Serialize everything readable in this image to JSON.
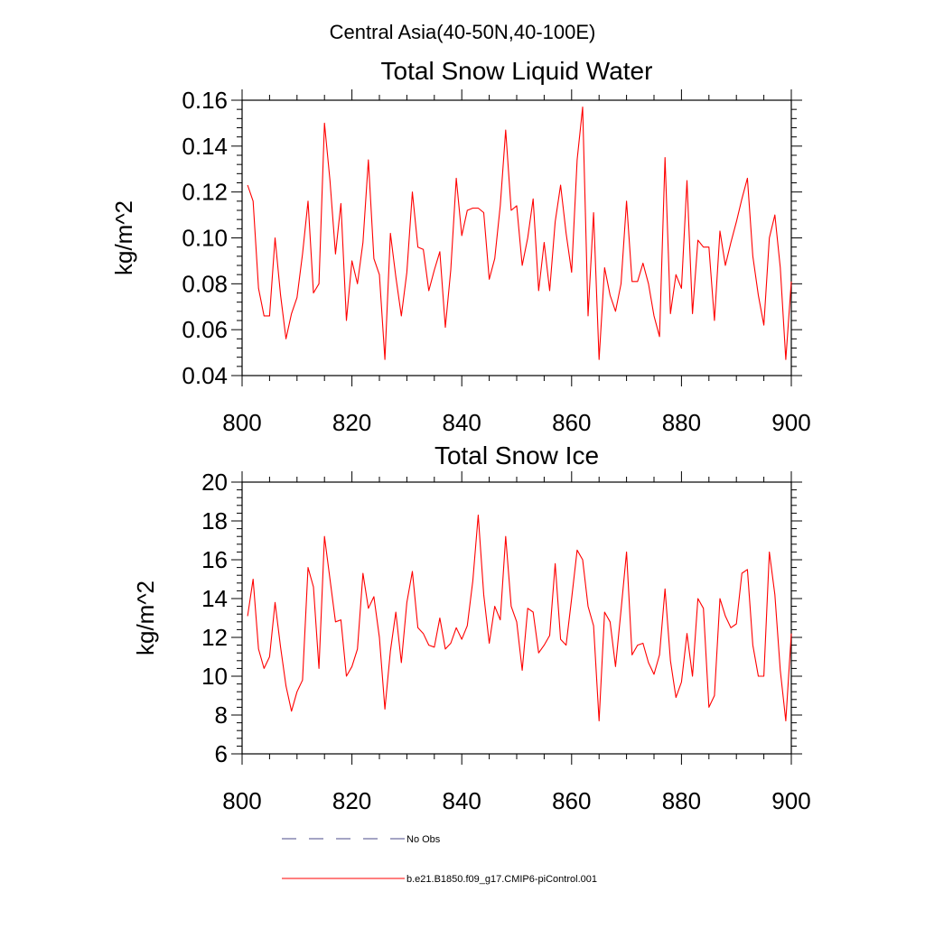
{
  "figure": {
    "title": "Central Asia(40-50N,40-100E)"
  },
  "chart_data": [
    {
      "type": "line",
      "title": "Total Snow Liquid Water",
      "xlabel": "",
      "ylabel": "kg/m^2",
      "xlim": [
        800,
        900
      ],
      "ylim": [
        0.04,
        0.16
      ],
      "xticks": [
        800,
        820,
        840,
        860,
        880,
        900
      ],
      "xtick_labels": [
        "800",
        "820",
        "840",
        "860",
        "880",
        "900"
      ],
      "yticks": [
        0.04,
        0.06,
        0.08,
        0.1,
        0.12,
        0.14,
        0.16
      ],
      "ytick_labels": [
        "0.04",
        "0.06",
        "0.08",
        "0.10",
        "0.12",
        "0.14",
        "0.16"
      ],
      "series": [
        {
          "name": "b.e21.B1850.f09_g17.CMIP6-piControl.001",
          "color": "#ff0000",
          "x": [
            801,
            802,
            803,
            804,
            805,
            806,
            807,
            808,
            809,
            810,
            811,
            812,
            813,
            814,
            815,
            816,
            817,
            818,
            819,
            820,
            821,
            822,
            823,
            824,
            825,
            826,
            827,
            828,
            829,
            830,
            831,
            832,
            833,
            834,
            835,
            836,
            837,
            838,
            839,
            840,
            841,
            842,
            843,
            844,
            845,
            846,
            847,
            848,
            849,
            850,
            851,
            852,
            853,
            854,
            855,
            856,
            857,
            858,
            859,
            860,
            861,
            862,
            863,
            864,
            865,
            866,
            867,
            868,
            869,
            870,
            871,
            872,
            873,
            874,
            875,
            876,
            877,
            878,
            879,
            880,
            881,
            882,
            883,
            884,
            885,
            886,
            887,
            888,
            889,
            890,
            891,
            892,
            893,
            894,
            895,
            896,
            897,
            898,
            899,
            900
          ],
          "values": [
            0.123,
            0.116,
            0.078,
            0.066,
            0.066,
            0.1,
            0.075,
            0.056,
            0.067,
            0.074,
            0.093,
            0.116,
            0.076,
            0.08,
            0.15,
            0.125,
            0.093,
            0.115,
            0.064,
            0.09,
            0.08,
            0.098,
            0.134,
            0.091,
            0.084,
            0.047,
            0.102,
            0.083,
            0.066,
            0.085,
            0.12,
            0.096,
            0.095,
            0.077,
            0.086,
            0.094,
            0.061,
            0.086,
            0.126,
            0.101,
            0.112,
            0.113,
            0.113,
            0.111,
            0.082,
            0.091,
            0.114,
            0.147,
            0.112,
            0.114,
            0.088,
            0.1,
            0.117,
            0.077,
            0.098,
            0.077,
            0.107,
            0.123,
            0.102,
            0.085,
            0.134,
            0.157,
            0.066,
            0.111,
            0.047,
            0.087,
            0.075,
            0.068,
            0.08,
            0.116,
            0.081,
            0.081,
            0.089,
            0.08,
            0.066,
            0.057,
            0.135,
            0.067,
            0.084,
            0.078,
            0.125,
            0.067,
            0.099,
            0.096,
            0.096,
            0.064,
            0.103,
            0.088,
            0.098,
            0.107,
            0.117,
            0.126,
            0.092,
            0.075,
            0.062,
            0.1,
            0.11,
            0.087,
            0.047,
            0.081
          ]
        }
      ]
    },
    {
      "type": "line",
      "title": "Total Snow Ice",
      "xlabel": "",
      "ylabel": "kg/m^2",
      "xlim": [
        800,
        900
      ],
      "ylim": [
        6,
        20
      ],
      "xticks": [
        800,
        820,
        840,
        860,
        880,
        900
      ],
      "xtick_labels": [
        "800",
        "820",
        "840",
        "860",
        "880",
        "900"
      ],
      "yticks": [
        6,
        8,
        10,
        12,
        14,
        16,
        18,
        20
      ],
      "ytick_labels": [
        "6",
        "8",
        "10",
        "12",
        "14",
        "16",
        "18",
        "20"
      ],
      "series": [
        {
          "name": "b.e21.B1850.f09_g17.CMIP6-piControl.001",
          "color": "#ff0000",
          "x": [
            801,
            802,
            803,
            804,
            805,
            806,
            807,
            808,
            809,
            810,
            811,
            812,
            813,
            814,
            815,
            816,
            817,
            818,
            819,
            820,
            821,
            822,
            823,
            824,
            825,
            826,
            827,
            828,
            829,
            830,
            831,
            832,
            833,
            834,
            835,
            836,
            837,
            838,
            839,
            840,
            841,
            842,
            843,
            844,
            845,
            846,
            847,
            848,
            849,
            850,
            851,
            852,
            853,
            854,
            855,
            856,
            857,
            858,
            859,
            860,
            861,
            862,
            863,
            864,
            865,
            866,
            867,
            868,
            869,
            870,
            871,
            872,
            873,
            874,
            875,
            876,
            877,
            878,
            879,
            880,
            881,
            882,
            883,
            884,
            885,
            886,
            887,
            888,
            889,
            890,
            891,
            892,
            893,
            894,
            895,
            896,
            897,
            898,
            899,
            900
          ],
          "values": [
            13.1,
            15.0,
            11.4,
            10.4,
            11.0,
            13.8,
            11.5,
            9.5,
            8.2,
            9.2,
            9.8,
            15.6,
            14.6,
            10.4,
            17.2,
            15.0,
            12.8,
            12.9,
            10.0,
            10.5,
            11.4,
            15.3,
            13.5,
            14.1,
            12.0,
            8.3,
            11.3,
            13.3,
            10.7,
            13.8,
            15.4,
            12.5,
            12.2,
            11.6,
            11.5,
            13.0,
            11.4,
            11.7,
            12.5,
            11.9,
            12.6,
            14.9,
            18.3,
            14.2,
            11.7,
            13.6,
            12.9,
            17.2,
            13.6,
            12.8,
            10.3,
            13.5,
            13.3,
            11.2,
            11.6,
            12.1,
            15.8,
            11.9,
            11.6,
            14.0,
            16.5,
            16.0,
            13.6,
            12.6,
            7.7,
            13.3,
            12.8,
            10.5,
            13.4,
            16.4,
            11.1,
            11.6,
            11.7,
            10.7,
            10.1,
            11.1,
            14.5,
            10.8,
            8.9,
            9.7,
            12.2,
            10.0,
            14.0,
            13.5,
            8.4,
            9.0,
            14.0,
            13.1,
            12.5,
            12.7,
            15.3,
            15.5,
            11.6,
            10.0,
            10.0,
            16.4,
            14.2,
            10.3,
            7.7,
            12.2
          ]
        }
      ]
    }
  ],
  "legend": {
    "items": [
      {
        "label": "No Obs",
        "color": "#4a4a8a",
        "dash": "dashed"
      },
      {
        "label": "b.e21.B1850.f09_g17.CMIP6-piControl.001",
        "color": "#ff0000",
        "dash": "solid"
      }
    ]
  }
}
